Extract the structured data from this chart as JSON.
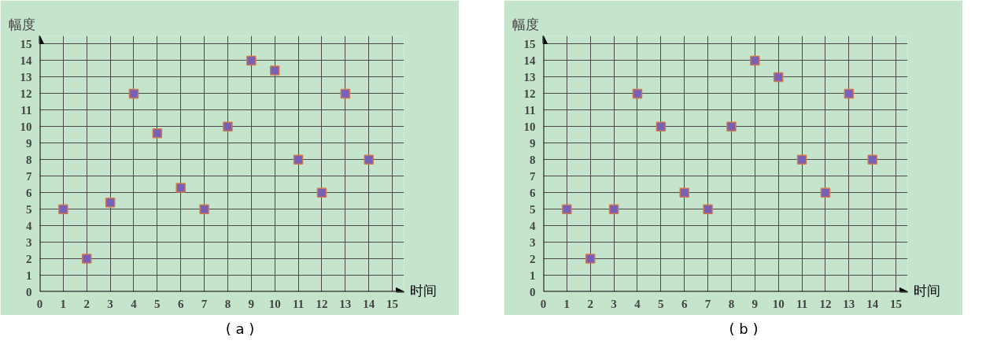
{
  "chart_data": [
    {
      "type": "scatter",
      "xlabel": "时间",
      "ylabel": "幅度",
      "annotations": [
        "( a )"
      ],
      "x": [
        1,
        2,
        3,
        4,
        5,
        6,
        7,
        8,
        9,
        10,
        11,
        12,
        13,
        14
      ],
      "series": [
        {
          "color": "#7660b8",
          "values": [
            5,
            2,
            5.4,
            12,
            9.6,
            6.3,
            5,
            10,
            14,
            13.4,
            8,
            6,
            12,
            8
          ]
        }
      ],
      "xlim": [
        0,
        15.5
      ],
      "ylim": [
        0,
        15.5
      ],
      "xticks": [
        0,
        1,
        2,
        3,
        4,
        5,
        6,
        7,
        8,
        9,
        10,
        11,
        12,
        13,
        14,
        15
      ],
      "yticks": [
        0,
        1,
        2,
        3,
        4,
        5,
        6,
        7,
        8,
        9,
        10,
        11,
        12,
        13,
        14,
        15
      ],
      "grid": true,
      "marker": "square"
    },
    {
      "type": "scatter",
      "xlabel": "时间",
      "ylabel": "幅度",
      "annotations": [
        "( b )"
      ],
      "x": [
        1,
        2,
        3,
        4,
        5,
        6,
        7,
        8,
        9,
        10,
        11,
        12,
        13,
        14
      ],
      "series": [
        {
          "color": "#7660b8",
          "values": [
            5,
            2,
            5,
            12,
            10,
            6,
            5,
            10,
            14,
            13,
            8,
            6,
            12,
            8
          ]
        }
      ],
      "xlim": [
        0,
        15.5
      ],
      "ylim": [
        0,
        15.5
      ],
      "xticks": [
        0,
        1,
        2,
        3,
        4,
        5,
        6,
        7,
        8,
        9,
        10,
        11,
        12,
        13,
        14,
        15
      ],
      "yticks": [
        0,
        1,
        2,
        3,
        4,
        5,
        6,
        7,
        8,
        9,
        10,
        11,
        12,
        13,
        14,
        15
      ],
      "grid": true,
      "marker": "square"
    }
  ]
}
